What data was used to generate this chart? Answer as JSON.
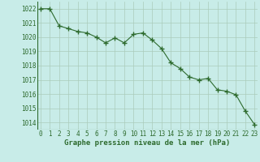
{
  "x": [
    0,
    1,
    2,
    3,
    4,
    5,
    6,
    7,
    8,
    9,
    10,
    11,
    12,
    13,
    14,
    15,
    16,
    17,
    18,
    19,
    20,
    21,
    22,
    23
  ],
  "y": [
    1022.0,
    1022.0,
    1020.8,
    1020.6,
    1020.4,
    1020.3,
    1020.0,
    1019.6,
    1019.95,
    1019.6,
    1020.2,
    1020.3,
    1019.8,
    1019.2,
    1018.2,
    1017.8,
    1017.2,
    1017.0,
    1017.1,
    1016.3,
    1016.2,
    1015.95,
    1014.8,
    1013.85
  ],
  "line_color": "#2d6a2d",
  "marker": "+",
  "marker_size": 4.0,
  "line_width": 0.8,
  "bg_color": "#c8ece8",
  "grid_color": "#aaccbb",
  "ylim": [
    1013.5,
    1022.5
  ],
  "yticks": [
    1014,
    1015,
    1016,
    1017,
    1018,
    1019,
    1020,
    1021,
    1022
  ],
  "xticks": [
    0,
    1,
    2,
    3,
    4,
    5,
    6,
    7,
    8,
    9,
    10,
    11,
    12,
    13,
    14,
    15,
    16,
    17,
    18,
    19,
    20,
    21,
    22,
    23
  ],
  "xlabel": "Graphe pression niveau de la mer (hPa)",
  "xlabel_fontsize": 6.5,
  "tick_fontsize": 5.5,
  "tick_color": "#2d6a2d",
  "label_color": "#2d6a2d",
  "xlim": [
    -0.3,
    23.3
  ]
}
